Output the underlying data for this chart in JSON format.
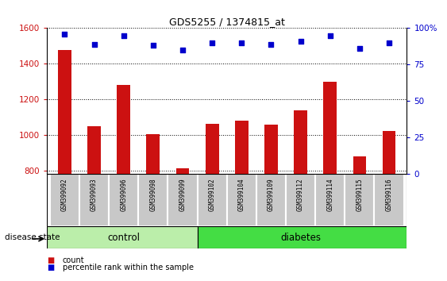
{
  "title": "GDS5255 / 1374815_at",
  "categories": [
    "GSM399092",
    "GSM399093",
    "GSM399096",
    "GSM399098",
    "GSM399099",
    "GSM399102",
    "GSM399104",
    "GSM399109",
    "GSM399112",
    "GSM399114",
    "GSM399115",
    "GSM399116"
  ],
  "bar_values": [
    1475,
    1048,
    1283,
    1005,
    815,
    1063,
    1080,
    1060,
    1138,
    1298,
    878,
    1022
  ],
  "dot_values": [
    96,
    89,
    95,
    88,
    85,
    90,
    90,
    89,
    91,
    95,
    86,
    90
  ],
  "ylim_left": [
    780,
    1600
  ],
  "ylim_right": [
    0,
    100
  ],
  "yticks_left": [
    800,
    1000,
    1200,
    1400,
    1600
  ],
  "yticks_right": [
    0,
    25,
    50,
    75,
    100
  ],
  "bar_color": "#cc1111",
  "dot_color": "#0000cc",
  "tick_area_color": "#c8c8c8",
  "control_color": "#bbeeaa",
  "diabetes_color": "#44dd44",
  "n_control": 5,
  "n_diabetes": 7,
  "legend_count_label": "count",
  "legend_percentile_label": "percentile rank within the sample",
  "disease_state_label": "disease state",
  "control_label": "control",
  "diabetes_label": "diabetes"
}
